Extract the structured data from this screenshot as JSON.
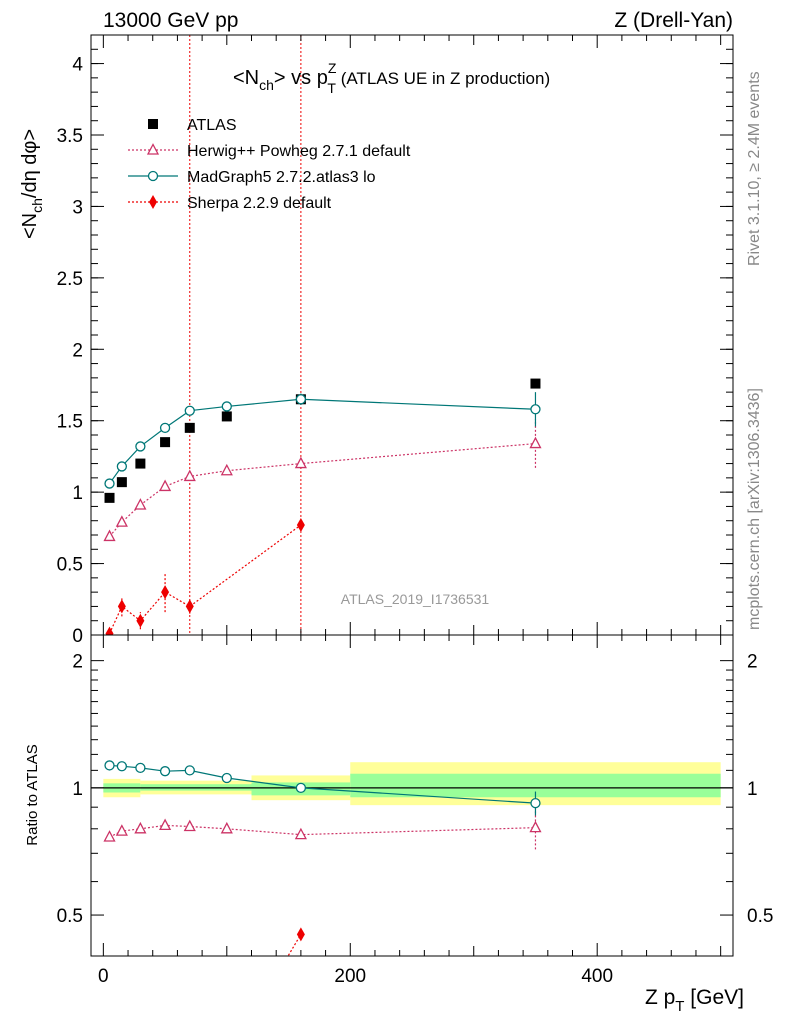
{
  "header": {
    "left": "13000 GeV pp",
    "right": "Z (Drell-Yan)"
  },
  "side_labels": {
    "rivet": "Rivet 3.1.10, ≥ 2.4M events",
    "mcplots": "mcplots.cern.ch [arXiv:1306.3436]"
  },
  "chart_data": [
    {
      "type": "scatter",
      "panel": "main",
      "title": "<N_ch> vs p_T^Z (ATLAS UE in Z production)",
      "title_main": "<N",
      "title_sub1": "ch",
      "title_mid": "> vs p",
      "title_sup": "Z",
      "title_sub2": "T",
      "title_tail": " (ATLAS UE in Z production)",
      "ylabel": "<N_ch/dη dφ>",
      "ylabel_a": "<N",
      "ylabel_sub": "ch",
      "ylabel_b": "/dη dφ>",
      "watermark": "ATLAS_2019_I1736531",
      "xlim": [
        -10,
        510
      ],
      "ylim": [
        0,
        4.2
      ],
      "yticks": [
        0,
        0.5,
        1,
        1.5,
        2,
        2.5,
        3,
        3.5,
        4
      ],
      "ytick_labels": [
        "0",
        "0.5",
        "1",
        "1.5",
        "2",
        "2.5",
        "3",
        "3.5",
        "4"
      ],
      "vlines": [
        70,
        160
      ],
      "legend_position": "top-left",
      "series": [
        {
          "name": "ATLAS",
          "color": "#000000",
          "marker": "square",
          "line": "none",
          "x": [
            5,
            15,
            30,
            50,
            70,
            100,
            160,
            350
          ],
          "y": [
            0.96,
            1.07,
            1.2,
            1.35,
            1.45,
            1.53,
            1.65,
            1.76
          ]
        },
        {
          "name": "Herwig++ Powheg 2.7.1 default",
          "color": "#cc3366",
          "marker": "triangle",
          "line": "dotted",
          "x": [
            5,
            15,
            30,
            50,
            70,
            100,
            160,
            350
          ],
          "y": [
            0.69,
            0.79,
            0.91,
            1.04,
            1.11,
            1.15,
            1.2,
            1.34
          ],
          "err": [
            0,
            0,
            0,
            0,
            0,
            0,
            0,
            0.17
          ]
        },
        {
          "name": "MadGraph5 2.7.2.atlas3 lo",
          "color": "#007777",
          "marker": "circle",
          "line": "solid",
          "x": [
            5,
            15,
            30,
            50,
            70,
            100,
            160,
            350
          ],
          "y": [
            1.06,
            1.18,
            1.32,
            1.45,
            1.57,
            1.6,
            1.65,
            1.58
          ],
          "err": [
            0,
            0,
            0,
            0,
            0,
            0,
            0.04,
            0.12
          ]
        },
        {
          "name": "Sherpa 2.2.9 default",
          "color": "#ee0000",
          "marker": "diamond",
          "line": "dotted",
          "x": [
            5,
            15,
            30,
            50,
            70,
            160
          ],
          "y": [
            0.01,
            0.2,
            0.1,
            0.3,
            0.2,
            0.77
          ],
          "err": [
            0.03,
            0.07,
            0.06,
            0.14,
            0.05,
            0.03
          ]
        }
      ]
    },
    {
      "type": "scatter",
      "panel": "ratio",
      "ylabel": "Ratio to ATLAS",
      "xlabel": "Z p_T [GeV]",
      "xlabel_a": "Z p",
      "xlabel_sub": "T",
      "xlabel_b": " [GeV]",
      "xlim": [
        -10,
        510
      ],
      "ylim": [
        0.4,
        2.3
      ],
      "y_scale": "log",
      "xticks": [
        0,
        200,
        400
      ],
      "xtick_labels": [
        "0",
        "200",
        "400"
      ],
      "yticks": [
        0.5,
        1,
        2
      ],
      "ytick_labels": [
        "0.5",
        "1",
        "2"
      ],
      "reference": 1,
      "bands": [
        {
          "x": [
            0,
            30
          ],
          "stat": [
            0.975,
            1.025
          ],
          "total": [
            0.95,
            1.05
          ]
        },
        {
          "x": [
            30,
            120
          ],
          "stat": [
            0.985,
            1.02
          ],
          "total": [
            0.965,
            1.04
          ]
        },
        {
          "x": [
            120,
            200
          ],
          "stat": [
            0.96,
            1.03
          ],
          "total": [
            0.935,
            1.07
          ]
        },
        {
          "x": [
            200,
            500
          ],
          "stat": [
            0.95,
            1.08
          ],
          "total": [
            0.91,
            1.15
          ]
        }
      ],
      "band_colors": {
        "stat": "#99ff99",
        "total": "#ffff99"
      },
      "series": [
        {
          "name": "Herwig++ Powheg 2.7.1 default",
          "color": "#cc3366",
          "marker": "triangle",
          "line": "dotted",
          "x": [
            5,
            15,
            30,
            50,
            70,
            100,
            160,
            350
          ],
          "y": [
            0.765,
            0.79,
            0.8,
            0.815,
            0.81,
            0.8,
            0.775,
            0.805
          ],
          "err": [
            0,
            0,
            0,
            0,
            0,
            0,
            0,
            0.09
          ]
        },
        {
          "name": "MadGraph5 2.7.2.atlas3 lo",
          "color": "#007777",
          "marker": "circle",
          "line": "solid",
          "x": [
            5,
            15,
            30,
            50,
            70,
            100,
            160,
            350
          ],
          "y": [
            1.13,
            1.125,
            1.115,
            1.095,
            1.1,
            1.055,
            1.0,
            0.92
          ],
          "err": [
            0,
            0,
            0,
            0,
            0,
            0,
            0.02,
            0.06
          ]
        },
        {
          "name": "Sherpa 2.2.9 default",
          "color": "#ee0000",
          "marker": "diamond",
          "line": "dotted",
          "x": [
            160
          ],
          "y": [
            0.45
          ],
          "err": [
            0
          ]
        }
      ]
    }
  ]
}
